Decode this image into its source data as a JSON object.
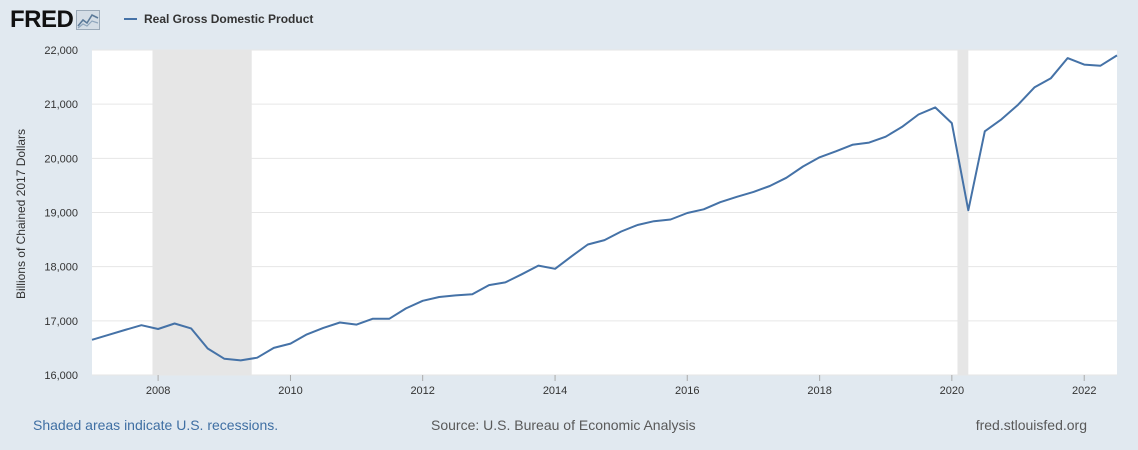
{
  "brand": {
    "logo_text": "FRED"
  },
  "colors": {
    "series": "#4572a7",
    "plot_background": "#ffffff",
    "page_background": "#e1e9f0",
    "recession_shading": "#e6e6e6",
    "grid": "#e6e6e6"
  },
  "footer": {
    "recession_note": "Shaded areas indicate U.S. recessions.",
    "source": "Source: U.S. Bureau of Economic Analysis",
    "site": "fred.stlouisfed.org"
  },
  "chart_data": {
    "type": "line",
    "title": "",
    "xlabel": "",
    "ylabel": "Billions of Chained 2017 Dollars",
    "grid": true,
    "legend_position": "top-left",
    "ylim": [
      16000,
      22000
    ],
    "xlim": [
      "2007-01-01",
      "2022-07-01"
    ],
    "y_ticks": [
      16000,
      17000,
      18000,
      19000,
      20000,
      21000,
      22000
    ],
    "y_tick_labels": [
      "16,000",
      "17,000",
      "18,000",
      "19,000",
      "20,000",
      "21,000",
      "22,000"
    ],
    "x_ticks": [
      "2008",
      "2010",
      "2012",
      "2014",
      "2016",
      "2018",
      "2020",
      "2022"
    ],
    "recessions": [
      {
        "start": "2007-12-01",
        "end": "2009-06-01"
      },
      {
        "start": "2020-02-01",
        "end": "2020-04-01"
      }
    ],
    "series": [
      {
        "name": "Real Gross Domestic Product",
        "points": [
          [
            "2007-01-01",
            16650
          ],
          [
            "2007-04-01",
            16740
          ],
          [
            "2007-07-01",
            16830
          ],
          [
            "2007-10-01",
            16920
          ],
          [
            "2008-01-01",
            16850
          ],
          [
            "2008-04-01",
            16950
          ],
          [
            "2008-07-01",
            16860
          ],
          [
            "2008-10-01",
            16490
          ],
          [
            "2009-01-01",
            16300
          ],
          [
            "2009-04-01",
            16270
          ],
          [
            "2009-07-01",
            16320
          ],
          [
            "2009-10-01",
            16500
          ],
          [
            "2010-01-01",
            16580
          ],
          [
            "2010-04-01",
            16750
          ],
          [
            "2010-07-01",
            16870
          ],
          [
            "2010-10-01",
            16970
          ],
          [
            "2011-01-01",
            16930
          ],
          [
            "2011-04-01",
            17040
          ],
          [
            "2011-07-01",
            17040
          ],
          [
            "2011-10-01",
            17230
          ],
          [
            "2012-01-01",
            17370
          ],
          [
            "2012-04-01",
            17440
          ],
          [
            "2012-07-01",
            17470
          ],
          [
            "2012-10-01",
            17490
          ],
          [
            "2013-01-01",
            17660
          ],
          [
            "2013-04-01",
            17710
          ],
          [
            "2013-07-01",
            17860
          ],
          [
            "2013-10-01",
            18020
          ],
          [
            "2014-01-01",
            17960
          ],
          [
            "2014-04-01",
            18190
          ],
          [
            "2014-07-01",
            18410
          ],
          [
            "2014-10-01",
            18490
          ],
          [
            "2015-01-01",
            18650
          ],
          [
            "2015-04-01",
            18770
          ],
          [
            "2015-07-01",
            18840
          ],
          [
            "2015-10-01",
            18870
          ],
          [
            "2016-01-01",
            18990
          ],
          [
            "2016-04-01",
            19060
          ],
          [
            "2016-07-01",
            19190
          ],
          [
            "2016-10-01",
            19290
          ],
          [
            "2017-01-01",
            19380
          ],
          [
            "2017-04-01",
            19490
          ],
          [
            "2017-07-01",
            19640
          ],
          [
            "2017-10-01",
            19850
          ],
          [
            "2018-01-01",
            20020
          ],
          [
            "2018-04-01",
            20130
          ],
          [
            "2018-07-01",
            20250
          ],
          [
            "2018-10-01",
            20290
          ],
          [
            "2019-01-01",
            20400
          ],
          [
            "2019-04-01",
            20580
          ],
          [
            "2019-07-01",
            20810
          ],
          [
            "2019-10-01",
            20940
          ],
          [
            "2020-01-01",
            20650
          ],
          [
            "2020-04-01",
            19040
          ],
          [
            "2020-07-01",
            20500
          ],
          [
            "2020-10-01",
            20720
          ],
          [
            "2021-01-01",
            20990
          ],
          [
            "2021-04-01",
            21310
          ],
          [
            "2021-07-01",
            21480
          ],
          [
            "2021-10-01",
            21850
          ],
          [
            "2022-01-01",
            21730
          ],
          [
            "2022-04-01",
            21710
          ],
          [
            "2022-07-01",
            21900
          ]
        ]
      }
    ]
  }
}
